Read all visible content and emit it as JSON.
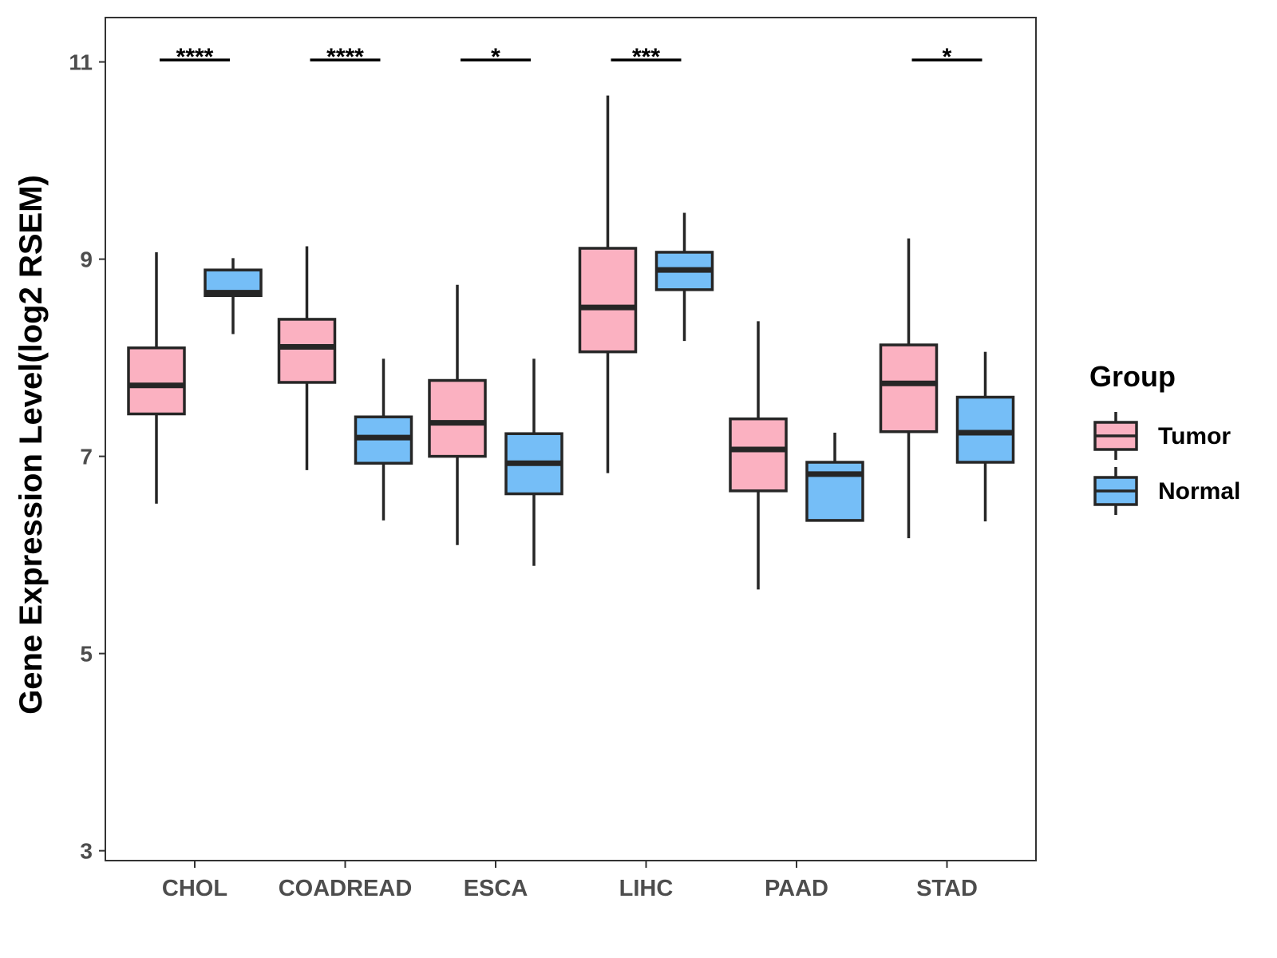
{
  "chart_data": {
    "type": "boxplot",
    "title": "",
    "xlabel": "",
    "ylabel": "Gene Expression Level(log2 RSEM)",
    "ylim": [
      2.9,
      11.45
    ],
    "yticks": [
      3,
      5,
      7,
      9,
      11
    ],
    "categories": [
      "CHOL",
      "COADREAD",
      "ESCA",
      "LIHC",
      "PAAD",
      "STAD"
    ],
    "legend": {
      "title": "Group",
      "position": "right",
      "entries": [
        {
          "name": "Tumor",
          "color": "#FBB1C1"
        },
        {
          "name": "Normal",
          "color": "#75BEF7"
        }
      ]
    },
    "series": [
      {
        "name": "Tumor",
        "color": "#FBB1C1",
        "boxes": [
          {
            "whisker_low": 6.52,
            "q1": 7.43,
            "median": 7.72,
            "q3": 8.1,
            "whisker_high": 9.07
          },
          {
            "whisker_low": 6.86,
            "q1": 7.75,
            "median": 8.11,
            "q3": 8.39,
            "whisker_high": 9.13
          },
          {
            "whisker_low": 6.1,
            "q1": 7.0,
            "median": 7.34,
            "q3": 7.77,
            "whisker_high": 8.74
          },
          {
            "whisker_low": 6.83,
            "q1": 8.06,
            "median": 8.51,
            "q3": 9.11,
            "whisker_high": 10.66
          },
          {
            "whisker_low": 5.65,
            "q1": 6.65,
            "median": 7.07,
            "q3": 7.38,
            "whisker_high": 8.37
          },
          {
            "whisker_low": 6.17,
            "q1": 7.25,
            "median": 7.74,
            "q3": 8.13,
            "whisker_high": 9.21
          }
        ]
      },
      {
        "name": "Normal",
        "color": "#75BEF7",
        "boxes": [
          {
            "whisker_low": 8.24,
            "q1": 8.63,
            "median": 8.66,
            "q3": 8.89,
            "whisker_high": 9.01
          },
          {
            "whisker_low": 6.35,
            "q1": 6.93,
            "median": 7.19,
            "q3": 7.4,
            "whisker_high": 7.99
          },
          {
            "whisker_low": 5.89,
            "q1": 6.62,
            "median": 6.93,
            "q3": 7.23,
            "whisker_high": 7.99
          },
          {
            "whisker_low": 8.17,
            "q1": 8.69,
            "median": 8.89,
            "q3": 9.07,
            "whisker_high": 9.47
          },
          {
            "whisker_low": 6.35,
            "q1": 6.35,
            "median": 6.82,
            "q3": 6.94,
            "whisker_high": 7.24
          },
          {
            "whisker_low": 6.34,
            "q1": 6.94,
            "median": 7.24,
            "q3": 7.6,
            "whisker_high": 8.06
          }
        ]
      }
    ],
    "significance": [
      {
        "category": "CHOL",
        "label": "****",
        "y": 11.02
      },
      {
        "category": "COADREAD",
        "label": "****",
        "y": 11.02
      },
      {
        "category": "ESCA",
        "label": "*",
        "y": 11.02
      },
      {
        "category": "LIHC",
        "label": "***",
        "y": 11.02
      },
      {
        "category": "PAAD",
        "label": "",
        "y": 11.02
      },
      {
        "category": "STAD",
        "label": "*",
        "y": 11.02
      }
    ],
    "grid": false
  }
}
